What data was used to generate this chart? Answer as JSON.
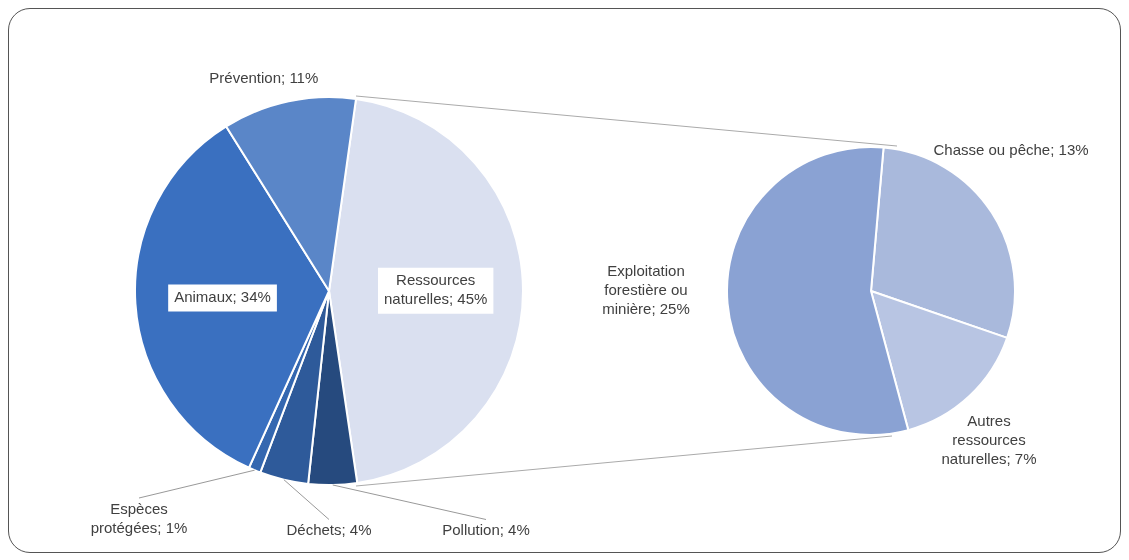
{
  "chart_data": [
    {
      "type": "pie",
      "categories": [
        "Ressources naturelles",
        "Pollution",
        "Déchets",
        "Espèces protégées",
        "Animaux",
        "Prévention"
      ],
      "values": [
        45,
        4,
        4,
        1,
        34,
        11
      ],
      "value_labels": [
        "45%",
        "4%",
        "4%",
        "1%",
        "34%",
        "11%"
      ],
      "colors": [
        "#dae0f0",
        "#264a7e",
        "#2e5a9a",
        "#3467b0",
        "#3a70c0",
        "#5a86c8"
      ],
      "legend": false
    },
    {
      "type": "pie",
      "categories": [
        "Chasse ou pêche",
        "Autres ressources naturelles",
        "Exploitation forestière ou minière"
      ],
      "values": [
        13,
        7,
        25
      ],
      "value_labels": [
        "13%",
        "7%",
        "25%"
      ],
      "colors": [
        "#a9b9dc",
        "#b8c5e3",
        "#8aa2d3"
      ],
      "legend": false
    }
  ]
}
